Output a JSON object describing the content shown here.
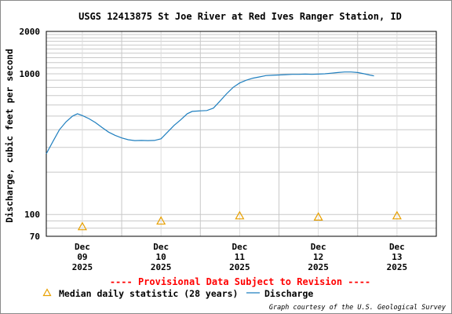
{
  "chart_data": {
    "type": "line",
    "title": "USGS 12413875 St Joe River at Red Ives Ranger Station, ID",
    "ylabel": "Discharge, cubic feet per second",
    "yscale": "log",
    "ylim": [
      70,
      2000
    ],
    "yticks": [
      70,
      100,
      1000,
      2000
    ],
    "xlim": [
      "2025-12-08 13:00",
      "2025-12-13 12:00"
    ],
    "xticks": [
      {
        "day": "Dec",
        "date": "09",
        "year": "2025",
        "x": "2025-12-09 00:00"
      },
      {
        "day": "Dec",
        "date": "10",
        "year": "2025",
        "x": "2025-12-10 00:00"
      },
      {
        "day": "Dec",
        "date": "11",
        "year": "2025",
        "x": "2025-12-11 00:00"
      },
      {
        "day": "Dec",
        "date": "12",
        "year": "2025",
        "x": "2025-12-12 00:00"
      },
      {
        "day": "Dec",
        "date": "13",
        "year": "2025",
        "x": "2025-12-13 00:00"
      }
    ],
    "grid": true,
    "series": [
      {
        "name": "Discharge",
        "color": "#1f7fbf",
        "points": [
          [
            "2025-12-08 13:00",
            270
          ],
          [
            "2025-12-08 15:00",
            330
          ],
          [
            "2025-12-08 17:00",
            400
          ],
          [
            "2025-12-08 19:00",
            455
          ],
          [
            "2025-12-08 21:00",
            500
          ],
          [
            "2025-12-08 22:30",
            520
          ],
          [
            "2025-12-09 00:00",
            505
          ],
          [
            "2025-12-09 02:00",
            480
          ],
          [
            "2025-12-09 04:00",
            450
          ],
          [
            "2025-12-09 06:00",
            415
          ],
          [
            "2025-12-09 08:00",
            385
          ],
          [
            "2025-12-09 10:00",
            365
          ],
          [
            "2025-12-09 12:00",
            350
          ],
          [
            "2025-12-09 14:00",
            340
          ],
          [
            "2025-12-09 16:00",
            335
          ],
          [
            "2025-12-09 18:00",
            336
          ],
          [
            "2025-12-09 20:00",
            335
          ],
          [
            "2025-12-09 22:00",
            336
          ],
          [
            "2025-12-10 00:00",
            345
          ],
          [
            "2025-12-10 02:00",
            385
          ],
          [
            "2025-12-10 04:00",
            430
          ],
          [
            "2025-12-10 06:00",
            470
          ],
          [
            "2025-12-10 08:00",
            520
          ],
          [
            "2025-12-10 09:30",
            540
          ],
          [
            "2025-12-10 12:00",
            545
          ],
          [
            "2025-12-10 14:00",
            548
          ],
          [
            "2025-12-10 16:00",
            570
          ],
          [
            "2025-12-10 18:00",
            640
          ],
          [
            "2025-12-10 20:00",
            720
          ],
          [
            "2025-12-10 22:00",
            800
          ],
          [
            "2025-12-11 00:00",
            860
          ],
          [
            "2025-12-11 02:00",
            900
          ],
          [
            "2025-12-11 04:00",
            930
          ],
          [
            "2025-12-11 06:00",
            950
          ],
          [
            "2025-12-11 08:00",
            970
          ],
          [
            "2025-12-11 10:00",
            975
          ],
          [
            "2025-12-11 12:00",
            980
          ],
          [
            "2025-12-11 14:00",
            985
          ],
          [
            "2025-12-11 16:00",
            990
          ],
          [
            "2025-12-11 18:00",
            990
          ],
          [
            "2025-12-11 20:00",
            995
          ],
          [
            "2025-12-11 22:00",
            990
          ],
          [
            "2025-12-12 00:00",
            995
          ],
          [
            "2025-12-12 02:00",
            1000
          ],
          [
            "2025-12-12 04:00",
            1010
          ],
          [
            "2025-12-12 06:00",
            1020
          ],
          [
            "2025-12-12 08:00",
            1030
          ],
          [
            "2025-12-12 10:00",
            1030
          ],
          [
            "2025-12-12 12:00",
            1020
          ],
          [
            "2025-12-12 14:00",
            1000
          ],
          [
            "2025-12-12 16:00",
            975
          ],
          [
            "2025-12-12 17:00",
            965
          ]
        ]
      },
      {
        "name": "Median daily statistic (28 years)",
        "color": "#e8a000",
        "marker": "triangle",
        "points": [
          [
            "2025-12-09 00:00",
            82
          ],
          [
            "2025-12-10 00:00",
            90
          ],
          [
            "2025-12-11 00:00",
            98
          ],
          [
            "2025-12-12 00:00",
            96
          ],
          [
            "2025-12-13 00:00",
            98
          ]
        ]
      }
    ]
  },
  "notice": "---- Provisional Data Subject to Revision ----",
  "credit": "Graph courtesy of the U.S. Geological Survey",
  "legend": {
    "median_label": "Median daily statistic (28 years)",
    "discharge_label": "Discharge"
  }
}
